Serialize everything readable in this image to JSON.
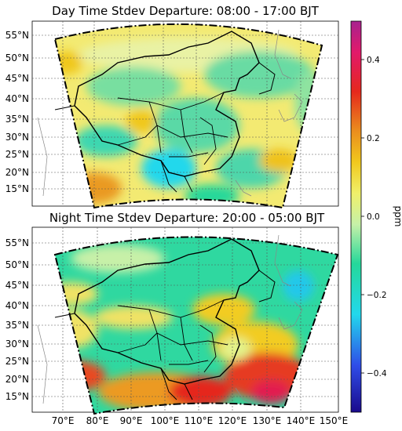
{
  "panels": [
    {
      "title": "Day Time Stdev Departure: 08:00 - 17:00 BJT",
      "lat_labels": [
        "55°N",
        "50°N",
        "45°N",
        "40°N",
        "35°N",
        "30°N",
        "25°N",
        "20°N",
        "15°N"
      ],
      "lon_labels": []
    },
    {
      "title": "Night Time Stdev Departure: 20:00 - 05:00 BJT",
      "lat_labels": [
        "55°N",
        "50°N",
        "45°N",
        "40°N",
        "35°N",
        "30°N",
        "25°N",
        "20°N",
        "15°N"
      ],
      "lon_labels": [
        "70°E",
        "80°E",
        "90°E",
        "100°E",
        "110°E",
        "120°E",
        "130°E",
        "140°E",
        "150°E"
      ]
    }
  ],
  "colorbar": {
    "label": "ppm",
    "ticks": [
      "0.4",
      "0.2",
      "0.0",
      "−0.2",
      "−0.4"
    ],
    "tick_values": [
      0.4,
      0.2,
      0.0,
      -0.2,
      -0.4
    ],
    "range": [
      -0.5,
      0.5
    ],
    "colors": [
      "#1a0a8c",
      "#2f4de8",
      "#22d8ec",
      "#25d89a",
      "#c6f0a8",
      "#f0f06a",
      "#f1c81d",
      "#ea8c1e",
      "#e5281d",
      "#e21a6a",
      "#a8228f"
    ]
  },
  "colors": {
    "background": "#ffffff",
    "domain_border": "#000000",
    "grid": "#555555",
    "country_border": "#000000",
    "province_border": "#000000",
    "coastline": "#888888"
  }
}
